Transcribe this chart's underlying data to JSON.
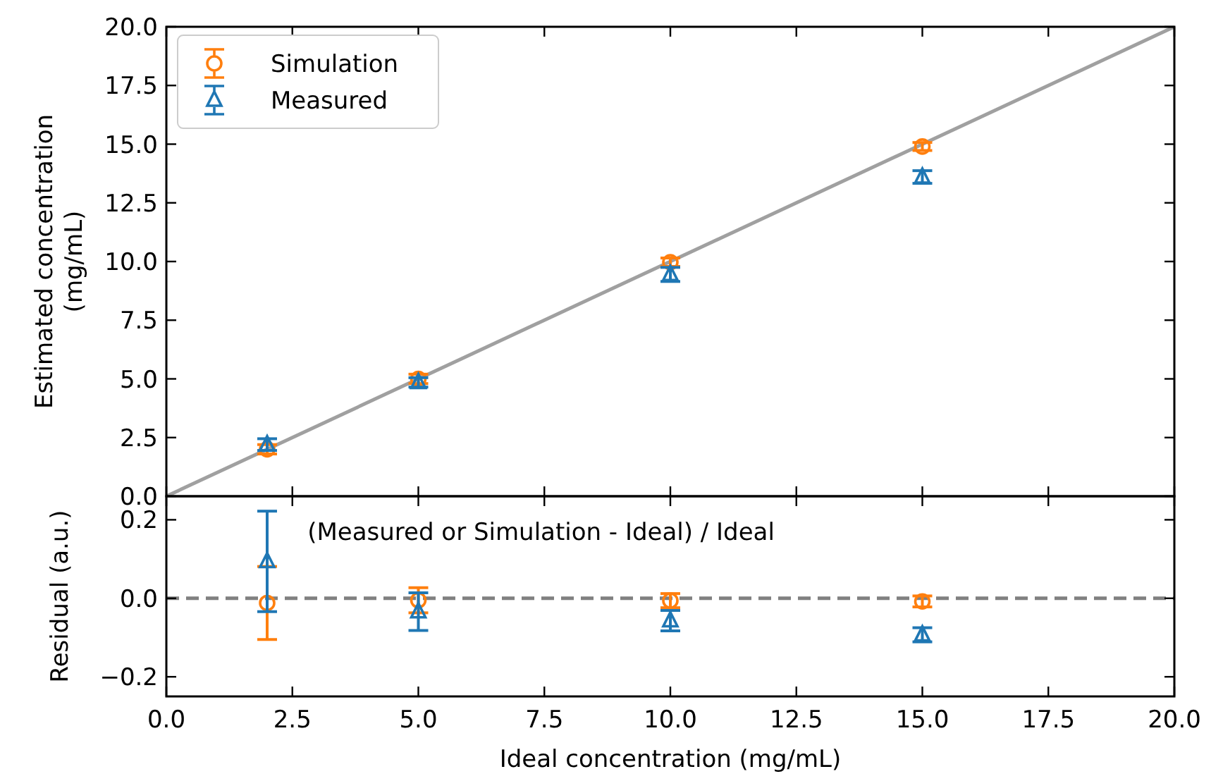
{
  "chart_data": [
    {
      "type": "scatter",
      "ylabel": "Estimated concentration\n(mg/mL)",
      "xlim": [
        0,
        20
      ],
      "xticks": [
        0,
        2.5,
        5,
        7.5,
        10,
        12.5,
        15,
        17.5,
        20
      ],
      "ylim": [
        0,
        20
      ],
      "yticks": [
        {
          "value": 0,
          "label": "0.0"
        },
        {
          "value": 2.5,
          "label": "2.5"
        },
        {
          "value": 5,
          "label": "5.0"
        },
        {
          "value": 7.5,
          "label": "7.5"
        },
        {
          "value": 10,
          "label": "10.0"
        },
        {
          "value": 12.5,
          "label": "12.5"
        },
        {
          "value": 15,
          "label": "15.0"
        },
        {
          "value": 17.5,
          "label": "17.5"
        },
        {
          "value": 20,
          "label": "20.0"
        }
      ],
      "tick_labels": "y",
      "legend": "top left",
      "series": [
        {
          "type": "line",
          "color": "#a0a0a0",
          "x": [
            0,
            20
          ],
          "values": [
            0,
            20
          ],
          "marker": "none",
          "line_style": "solid"
        },
        {
          "name": "Simulation",
          "color": "#ff7f0e",
          "marker": "circle",
          "x": [
            2,
            5,
            10,
            15
          ],
          "values": [
            2.0,
            5.0,
            9.97,
            14.9
          ],
          "errors": [
            0.2,
            0.2,
            0.18,
            0.17
          ]
        },
        {
          "name": "Measured",
          "color": "#1f77b4",
          "marker": "triangle",
          "x": [
            2,
            5,
            10,
            15
          ],
          "values": [
            2.2,
            4.85,
            9.45,
            13.6
          ],
          "errors": [
            0.25,
            0.2,
            0.3,
            0.27
          ]
        }
      ]
    },
    {
      "type": "scatter",
      "xlabel": "Ideal concentration (mg/mL)",
      "ylabel": "Residual (a.u.)",
      "xlim": [
        0,
        20
      ],
      "xticks": [
        {
          "value": 0,
          "label": "0.0"
        },
        {
          "value": 2.5,
          "label": "2.5"
        },
        {
          "value": 5,
          "label": "5.0"
        },
        {
          "value": 7.5,
          "label": "7.5"
        },
        {
          "value": 10,
          "label": "10.0"
        },
        {
          "value": 12.5,
          "label": "12.5"
        },
        {
          "value": 15,
          "label": "15.0"
        },
        {
          "value": 17.5,
          "label": "17.5"
        },
        {
          "value": 20,
          "label": "20.0"
        }
      ],
      "ylim": [
        -0.25,
        0.26
      ],
      "yticks": [
        {
          "value": -0.2,
          "label": "−0.2"
        },
        {
          "value": 0,
          "label": "0.0"
        },
        {
          "value": 0.2,
          "label": "0.2"
        }
      ],
      "annotations": [
        "(Measured or Simulation - Ideal) / Ideal"
      ],
      "ref_lines": [
        {
          "axis": "y",
          "value": 0,
          "color": "#808080",
          "line_style": "dashed"
        }
      ],
      "series": [
        {
          "color": "#ff7f0e",
          "marker": "circle",
          "x": [
            2,
            5,
            10,
            15
          ],
          "values": [
            -0.012,
            -0.005,
            -0.006,
            -0.008
          ],
          "errors": [
            0.093,
            0.032,
            0.018,
            0.014
          ]
        },
        {
          "color": "#1f77b4",
          "marker": "triangle",
          "x": [
            2,
            5,
            10,
            15
          ],
          "values": [
            0.094,
            -0.034,
            -0.057,
            -0.093
          ],
          "errors": [
            0.128,
            0.048,
            0.026,
            0.018
          ]
        }
      ]
    }
  ]
}
